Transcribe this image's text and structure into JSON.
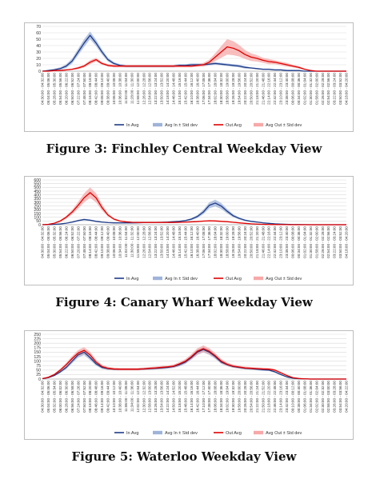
{
  "figures": [
    {
      "caption": "Figure 3: Finchley Central Weekday View",
      "chart_data": {
        "type": "line",
        "title": "",
        "xlabel": "",
        "ylabel": "",
        "ylim": [
          0,
          70
        ],
        "yticks": [
          0,
          10,
          20,
          30,
          40,
          50,
          60,
          70
        ],
        "categories": [
          "04:30:00 - 04:32:00",
          "05:04:00 - 05:06:00",
          "05:28:00 - 05:30:00",
          "05:54:00 - 05:56:00",
          "06:20:00 - 06:22:00",
          "06:50:00 - 06:52:00",
          "07:22:00 - 07:24:00",
          "07:48:00 - 07:50:00",
          "08:16:00 - 08:18:00",
          "08:42:00 - 08:44:00",
          "09:08:00 - 09:10:00",
          "09:38:00 - 09:40:00",
          "10:06:00 - 10:08:00",
          "10:36:00 - 10:38:00",
          "11:02:00 - 11:04:00",
          "11:28:00 - 11:30:00",
          "11:58:00 - 12:00:00",
          "12:26:00 - 12:28:00",
          "12:54:00 - 12:56:00",
          "13:22:00 - 13:24:00",
          "13:50:00 - 13:52:00",
          "14:18:00 - 14:20:00",
          "14:46:00 - 14:48:00",
          "15:14:00 - 15:16:00",
          "15:42:00 - 15:44:00",
          "16:10:00 - 16:12:00",
          "16:38:00 - 16:40:00",
          "17:06:00 - 17:08:00",
          "17:34:00 - 17:36:00",
          "18:02:00 - 18:04:00",
          "18:30:00 - 18:32:00",
          "18:58:00 - 19:00:00",
          "19:26:00 - 19:28:00",
          "19:54:00 - 19:56:00",
          "20:22:00 - 20:24:00",
          "20:50:00 - 20:52:00",
          "21:18:00 - 21:20:00",
          "21:46:00 - 21:48:00",
          "22:14:00 - 22:16:00",
          "22:42:00 - 22:44:00",
          "23:10:00 - 23:12:00",
          "23:38:00 - 23:40:00",
          "00:06:00 - 00:08:00",
          "00:34:00 - 00:36:00",
          "01:02:00 - 01:04:00",
          "01:30:00 - 01:32:00",
          "01:58:00 - 02:00:00",
          "02:26:00 - 02:28:00",
          "02:54:00 - 02:56:00",
          "03:22:00 - 03:24:00",
          "03:50:00 - 03:52:00",
          "04:18:00 - 04:20:00"
        ],
        "series": [
          {
            "name": "In Avg",
            "color": "#1f3c88",
            "values": [
              0,
              1,
              2,
              4,
              8,
              16,
              30,
              44,
              56,
              44,
              30,
              18,
              12,
              9,
              8,
              8,
              8,
              8,
              8,
              8,
              8,
              8,
              8,
              9,
              9,
              10,
              10,
              10,
              11,
              12,
              11,
              10,
              9,
              8,
              6,
              5,
              4,
              3,
              3,
              2,
              2,
              1,
              1,
              1,
              0,
              0,
              0,
              0,
              0,
              0,
              0,
              0
            ]
          },
          {
            "name": "Avg In ± Std dev",
            "color": "#9fb3d9",
            "values": [
              0,
              1,
              2,
              2,
              3,
              4,
              5,
              6,
              6,
              5,
              4,
              3,
              2,
              2,
              2,
              2,
              2,
              2,
              2,
              2,
              2,
              2,
              2,
              2,
              2,
              2,
              2,
              2,
              2,
              2,
              2,
              2,
              2,
              2,
              2,
              1,
              1,
              1,
              1,
              1,
              1,
              1,
              1,
              0,
              0,
              0,
              0,
              0,
              0,
              0,
              0,
              0
            ]
          },
          {
            "name": "Out Avg",
            "color": "#e10000",
            "values": [
              0,
              0,
              1,
              1,
              2,
              3,
              5,
              8,
              14,
              18,
              12,
              9,
              8,
              8,
              8,
              8,
              8,
              8,
              8,
              8,
              8,
              8,
              8,
              8,
              8,
              8,
              9,
              10,
              14,
              22,
              30,
              38,
              36,
              32,
              26,
              22,
              20,
              17,
              15,
              14,
              12,
              10,
              8,
              6,
              3,
              1,
              0,
              0,
              0,
              0,
              0,
              0
            ]
          },
          {
            "name": "Avg Out ± Std dev",
            "color": "#f7a8a8",
            "values": [
              0,
              0,
              1,
              1,
              1,
              1,
              2,
              2,
              3,
              3,
              2,
              2,
              2,
              2,
              2,
              2,
              2,
              2,
              2,
              2,
              2,
              2,
              2,
              2,
              2,
              2,
              2,
              3,
              4,
              6,
              9,
              12,
              11,
              9,
              7,
              6,
              5,
              4,
              4,
              3,
              3,
              3,
              2,
              2,
              1,
              1,
              0,
              0,
              0,
              0,
              0,
              0
            ]
          }
        ]
      }
    },
    {
      "caption": "Figure 4: Canary Wharf Weekday View",
      "chart_data": {
        "type": "line",
        "title": "",
        "xlabel": "",
        "ylabel": "",
        "ylim": [
          0,
          600
        ],
        "yticks": [
          0,
          50,
          100,
          150,
          200,
          250,
          300,
          350,
          400,
          450,
          500,
          550,
          600
        ],
        "categories": [
          "04:30:00 - 04:32:00",
          "05:04:00 - 05:06:00",
          "05:30:00 - 05:32:00",
          "05:54:00 - 05:56:00",
          "06:22:00 - 06:24:00",
          "06:50:00 - 06:52:00",
          "07:20:00 - 07:22:00",
          "07:48:00 - 07:50:00",
          "08:14:00 - 08:16:00",
          "08:42:00 - 08:44:00",
          "09:10:00 - 09:12:00",
          "09:38:00 - 09:40:00",
          "10:06:00 - 10:08:00",
          "10:34:00 - 10:36:00",
          "11:02:00 - 11:04:00",
          "11:30:00 - 11:32:00",
          "11:58:00 - 12:00:00",
          "12:26:00 - 12:28:00",
          "12:54:00 - 12:56:00",
          "13:22:00 - 13:24:00",
          "13:50:00 - 13:52:00",
          "14:18:00 - 14:20:00",
          "14:46:00 - 14:48:00",
          "15:14:00 - 15:16:00",
          "15:42:00 - 15:44:00",
          "16:10:00 - 16:12:00",
          "16:38:00 - 16:40:00",
          "17:06:00 - 17:08:00",
          "17:34:00 - 17:36:00",
          "18:02:00 - 18:04:00",
          "18:30:00 - 18:32:00",
          "18:58:00 - 19:00:00",
          "19:26:00 - 19:28:00",
          "19:54:00 - 19:56:00",
          "20:22:00 - 20:24:00",
          "20:50:00 - 20:52:00",
          "21:18:00 - 21:20:00",
          "21:46:00 - 21:48:00",
          "22:14:00 - 22:16:00",
          "22:42:00 - 22:44:00",
          "23:10:00 - 23:12:00",
          "23:38:00 - 23:40:00",
          "00:06:00 - 00:08:00",
          "00:34:00 - 00:36:00",
          "01:02:00 - 01:04:00",
          "01:30:00 - 01:32:00",
          "01:58:00 - 02:00:00",
          "02:26:00 - 02:28:00",
          "02:54:00 - 02:56:00",
          "03:22:00 - 03:24:00",
          "03:50:00 - 03:52:00",
          "04:18:00 - 04:20:00"
        ],
        "series": [
          {
            "name": "In Avg",
            "color": "#1f3c88",
            "values": [
              0,
              2,
              5,
              10,
              20,
              35,
              55,
              70,
              60,
              45,
              35,
              28,
              25,
              25,
              25,
              25,
              26,
              28,
              30,
              30,
              32,
              35,
              40,
              45,
              55,
              75,
              110,
              170,
              260,
              290,
              250,
              180,
              120,
              85,
              60,
              45,
              35,
              25,
              18,
              12,
              8,
              5,
              3,
              2,
              1,
              0,
              0,
              0,
              0,
              0,
              0,
              0
            ]
          },
          {
            "name": "Avg In ± Std dev",
            "color": "#9fb3d9",
            "values": [
              0,
              1,
              2,
              3,
              5,
              8,
              10,
              12,
              10,
              8,
              6,
              5,
              5,
              5,
              5,
              5,
              5,
              5,
              5,
              5,
              6,
              6,
              7,
              8,
              10,
              14,
              20,
              30,
              40,
              45,
              40,
              30,
              20,
              15,
              10,
              8,
              6,
              5,
              4,
              3,
              2,
              1,
              1,
              1,
              0,
              0,
              0,
              0,
              0,
              0,
              0,
              0
            ]
          },
          {
            "name": "Out Avg",
            "color": "#e10000",
            "values": [
              0,
              5,
              20,
              50,
              100,
              170,
              260,
              360,
              430,
              360,
              230,
              130,
              75,
              50,
              38,
              32,
              30,
              30,
              30,
              30,
              30,
              30,
              30,
              32,
              35,
              38,
              42,
              48,
              52,
              50,
              45,
              40,
              32,
              25,
              18,
              12,
              8,
              5,
              3,
              2,
              1,
              1,
              0,
              0,
              0,
              0,
              0,
              0,
              0,
              0,
              0,
              0
            ]
          },
          {
            "name": "Avg Out ± Std dev",
            "color": "#f7a8a8",
            "values": [
              0,
              2,
              6,
              12,
              20,
              30,
              45,
              60,
              70,
              60,
              40,
              22,
              12,
              8,
              6,
              5,
              5,
              5,
              5,
              5,
              5,
              5,
              5,
              5,
              6,
              6,
              7,
              8,
              9,
              9,
              8,
              7,
              6,
              5,
              3,
              2,
              2,
              1,
              1,
              1,
              0,
              0,
              0,
              0,
              0,
              0,
              0,
              0,
              0,
              0,
              0,
              0
            ]
          }
        ]
      }
    },
    {
      "caption": "Figure 5: Waterloo Weekday View",
      "chart_data": {
        "type": "line",
        "title": "",
        "xlabel": "",
        "ylabel": "",
        "ylim": [
          0,
          250
        ],
        "yticks": [
          0,
          25,
          50,
          75,
          100,
          125,
          150,
          175,
          200,
          225,
          250
        ],
        "categories": [
          "04:30:00 - 04:32:00",
          "05:04:00 - 05:06:00",
          "05:32:00 - 05:34:00",
          "06:00:00 - 06:02:00",
          "06:28:00 - 06:30:00",
          "06:56:00 - 06:58:00",
          "07:24:00 - 07:26:00",
          "07:50:00 - 07:52:00",
          "08:18:00 - 08:20:00",
          "08:46:00 - 08:48:00",
          "09:14:00 - 09:16:00",
          "09:42:00 - 09:44:00",
          "10:10:00 - 10:12:00",
          "10:38:00 - 10:40:00",
          "11:06:00 - 11:08:00",
          "11:34:00 - 11:36:00",
          "12:02:00 - 12:04:00",
          "12:30:00 - 12:32:00",
          "12:58:00 - 13:00:00",
          "13:26:00 - 13:28:00",
          "13:54:00 - 13:56:00",
          "14:22:00 - 14:24:00",
          "14:50:00 - 14:52:00",
          "15:18:00 - 15:20:00",
          "15:46:00 - 15:48:00",
          "16:14:00 - 16:16:00",
          "16:42:00 - 16:44:00",
          "17:10:00 - 17:12:00",
          "17:38:00 - 17:40:00",
          "18:06:00 - 18:08:00",
          "18:34:00 - 18:36:00",
          "19:02:00 - 19:04:00",
          "19:30:00 - 19:32:00",
          "19:58:00 - 20:00:00",
          "20:26:00 - 20:28:00",
          "20:54:00 - 20:56:00",
          "21:22:00 - 21:24:00",
          "21:50:00 - 21:52:00",
          "22:18:00 - 22:20:00",
          "22:46:00 - 22:48:00",
          "23:14:00 - 23:16:00",
          "23:42:00 - 23:44:00",
          "00:10:00 - 00:12:00",
          "00:38:00 - 00:40:00",
          "01:06:00 - 01:08:00",
          "01:34:00 - 01:36:00",
          "02:02:00 - 02:04:00",
          "02:30:00 - 02:32:00",
          "02:58:00 - 03:00:00",
          "03:26:00 - 03:28:00",
          "03:54:00 - 03:56:00",
          "04:20:00 - 04:22:00"
        ],
        "series": [
          {
            "name": "In Avg",
            "color": "#1f3c88",
            "values": [
              2,
              8,
              20,
              40,
              65,
              100,
              135,
              150,
              120,
              85,
              65,
              58,
              55,
              55,
              55,
              55,
              55,
              56,
              58,
              60,
              62,
              65,
              70,
              80,
              95,
              120,
              150,
              165,
              150,
              125,
              95,
              80,
              70,
              65,
              60,
              58,
              55,
              52,
              50,
              40,
              25,
              12,
              5,
              2,
              1,
              0,
              0,
              0,
              0,
              0,
              0,
              0
            ]
          },
          {
            "name": "Avg In ± Std dev",
            "color": "#9fb3d9",
            "values": [
              1,
              2,
              4,
              6,
              9,
              12,
              15,
              16,
              14,
              10,
              8,
              7,
              6,
              6,
              6,
              6,
              6,
              6,
              6,
              7,
              7,
              7,
              8,
              9,
              10,
              12,
              15,
              16,
              15,
              12,
              10,
              8,
              7,
              7,
              6,
              6,
              6,
              6,
              5,
              5,
              3,
              2,
              1,
              1,
              0,
              0,
              0,
              0,
              0,
              0,
              0,
              0
            ]
          },
          {
            "name": "Out Avg",
            "color": "#e10000",
            "values": [
              2,
              10,
              25,
              50,
              80,
              115,
              145,
              160,
              135,
              95,
              70,
              60,
              56,
              55,
              55,
              55,
              55,
              57,
              60,
              62,
              65,
              68,
              72,
              85,
              100,
              125,
              155,
              170,
              155,
              130,
              100,
              82,
              72,
              67,
              62,
              60,
              58,
              56,
              55,
              50,
              35,
              20,
              8,
              3,
              1,
              0,
              0,
              0,
              0,
              0,
              0,
              0
            ]
          },
          {
            "name": "Avg Out ± Std dev",
            "color": "#f7a8a8",
            "values": [
              1,
              3,
              5,
              8,
              11,
              14,
              17,
              18,
              16,
              12,
              9,
              8,
              7,
              7,
              7,
              7,
              7,
              7,
              7,
              8,
              8,
              8,
              9,
              10,
              12,
              14,
              17,
              18,
              17,
              14,
              12,
              10,
              9,
              8,
              8,
              7,
              7,
              7,
              7,
              6,
              5,
              3,
              2,
              1,
              0,
              0,
              0,
              0,
              0,
              0,
              0,
              0
            ]
          }
        ]
      }
    }
  ]
}
